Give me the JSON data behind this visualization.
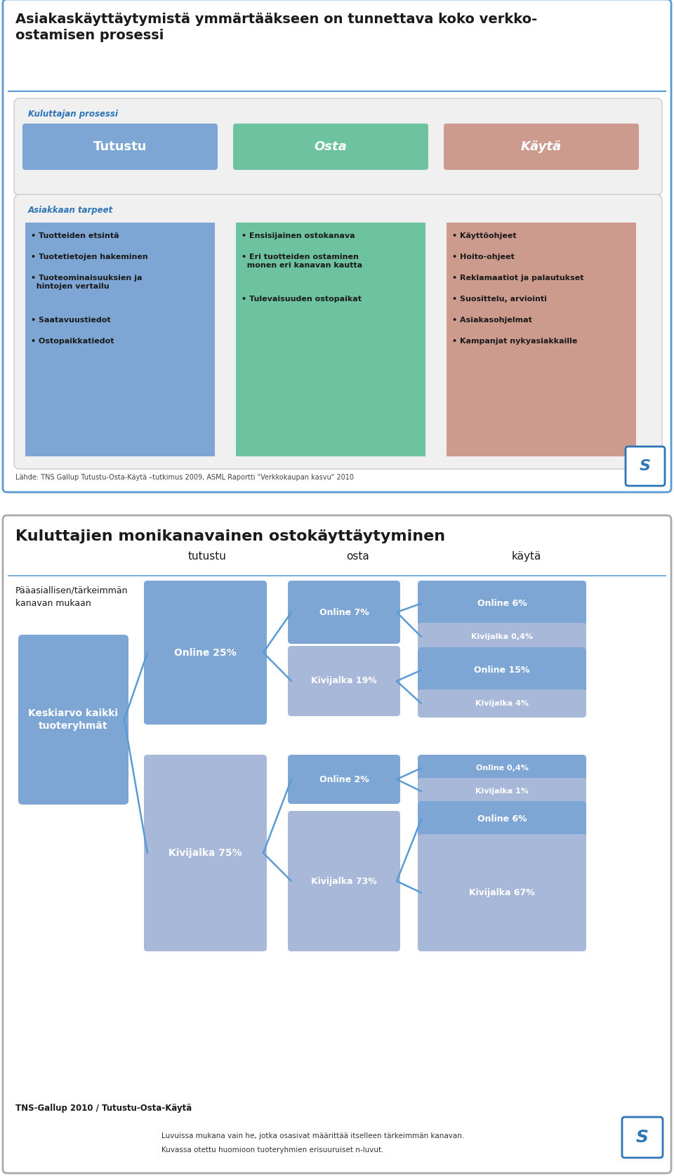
{
  "slide1": {
    "title": "Asiakaskäyttäytymistä ymmärtääkseen on tunnettava koko verkko-\nostamisen prosessi",
    "kuluttajan_prosessi_label": "Kuluttajan prosessi",
    "box1_label": "Tutustu",
    "box2_label": "Osta",
    "box3_label": "Käytä",
    "box1_color": "#7EA6D4",
    "box2_color": "#6DC2A0",
    "box3_color": "#CD9B8E",
    "asiakkaan_tarpeet_label": "Asiakkaan tarpeet",
    "col1_items": [
      "• Tuotteiden etsintä",
      "• Tuotetietojen hakeminen",
      "• Tuoteominaisuuksien ja\n  hintojen vertailu",
      "• Saatavuustiedot",
      "• Ostopaikkatiedot"
    ],
    "col2_items": [
      "• Ensisijainen ostokanava",
      "• Eri tuotteiden ostaminen\n  monen eri kanavan kautta",
      "• Tulevaisuuden ostopaikat"
    ],
    "col3_items": [
      "• Käyttöohjeet",
      "• Hoito-ohjeet",
      "• Reklamaatiot ja palautukset",
      "• Suosittelu, arviointi",
      "• Asiakasohjelmat",
      "• Kampanjat nykyasiakkaille"
    ],
    "source": "Lähde: TNS Gallup Tutustu-Osta-Käytä –tutkimus 2009, ASML Raportti \"Verkkokaupan kasvu\" 2010",
    "border_color": "#5B9BD5",
    "panel_bg": "#F0F0F0"
  },
  "slide2": {
    "title": "Kuluttajien monikanavainen ostokäyttäytyminen",
    "subtitle_left": "Pääasiallisen/tärkeimmän\nkanavan mukaan",
    "col_labels": [
      "tutustu",
      "osta",
      "käytä"
    ],
    "center_box_label": "Keskiarvo kaikki\ntuoteryhmät",
    "center_box_color": "#7EA6D4",
    "online_color": "#7EA6D4",
    "kivi_color": "#A8B8D8",
    "source": "TNS-Gallup 2010 / Tutustu-Osta-Käytä",
    "footnote1": "Luvuissa mukana vain he, jotka osasivat määrittää itselleen tärkeimmän kanavan.",
    "footnote2": "Kuvassa otettu huomioon tuoteryhmien erisuuruiset n-luvut.",
    "border_color": "#999999",
    "line_color": "#5B9BD5"
  }
}
